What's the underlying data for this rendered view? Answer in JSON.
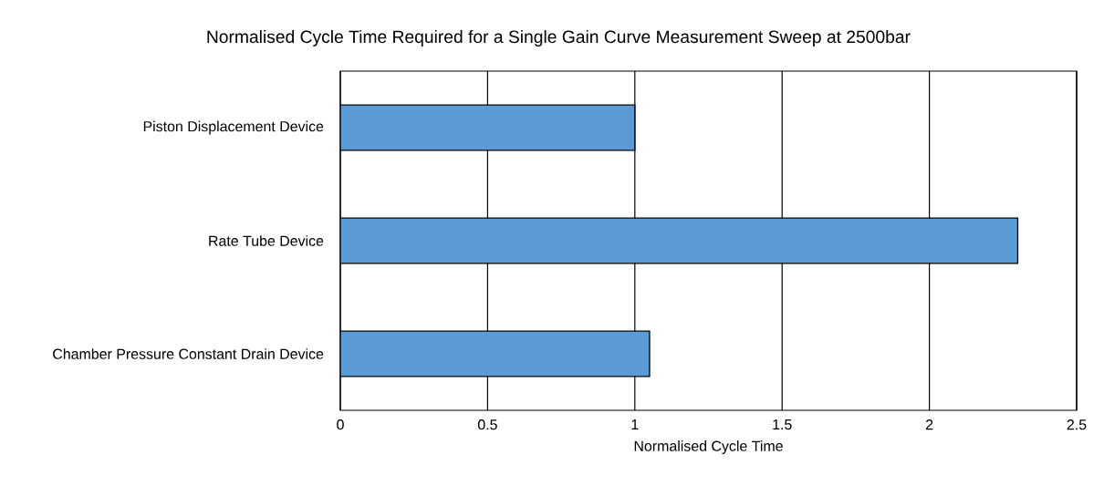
{
  "chart_data": {
    "type": "bar",
    "orientation": "horizontal",
    "title": "Normalised Cycle Time Required for a Single Gain Curve Measurement Sweep at 2500bar",
    "xlabel": "Normalised Cycle Time",
    "categories": [
      "Piston Displacement Device",
      "Rate Tube Device",
      "Chamber Pressure Constant Drain Device"
    ],
    "values": [
      1.0,
      2.3,
      1.05
    ],
    "color": "#5b9bd5",
    "xlim": [
      0,
      2.5
    ],
    "xticks": [
      0,
      0.5,
      1,
      1.5,
      2,
      2.5
    ],
    "grid": "x"
  }
}
